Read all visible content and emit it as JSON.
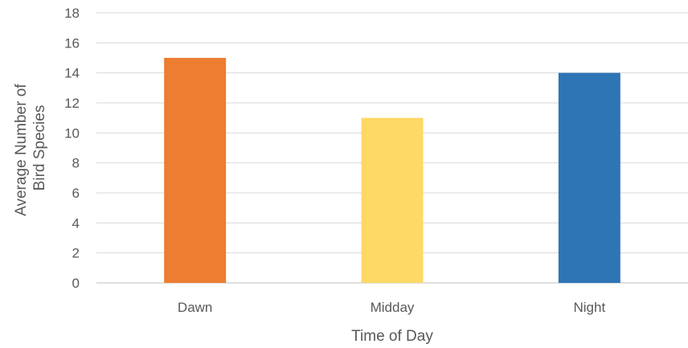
{
  "chart_data": {
    "type": "bar",
    "categories": [
      "Dawn",
      "Midday",
      "Night"
    ],
    "values": [
      15,
      11,
      14
    ],
    "bar_colors": [
      "#ed7d31",
      "#ffd966",
      "#2e75b6"
    ],
    "title": "",
    "xlabel": "Time of Day",
    "ylabel_lines": [
      "Average Number of",
      "Bird Species"
    ],
    "ylim": [
      0,
      18
    ],
    "yticks": [
      0,
      2,
      4,
      6,
      8,
      10,
      12,
      14,
      16,
      18
    ],
    "grid": true,
    "legend": "none"
  }
}
